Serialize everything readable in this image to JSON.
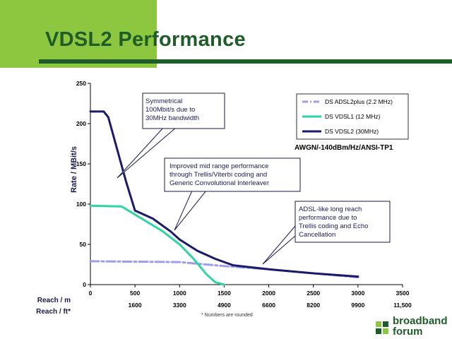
{
  "slide": {
    "title": "VDSL2 Performance",
    "footnote": "* Numbers are rounded",
    "logo_line1": "broadband",
    "logo_line2": "forum"
  },
  "colors": {
    "accent_green": "#8dc63f",
    "title_green": "#1f5c2a",
    "adsl2plus": "#9e9ee6",
    "vdsl1": "#2ed3a6",
    "vdsl2": "#1a1a6b"
  },
  "chart_data": {
    "type": "line",
    "ylabel": "Rate / MBit/s",
    "xlabel_m": "Reach / m",
    "xlabel_ft": "Reach / ft*",
    "xlim": [
      0,
      3500
    ],
    "ylim": [
      0,
      250
    ],
    "x_ticks": [
      "0",
      "500",
      "1000",
      "1500",
      "2000",
      "2500",
      "3000",
      "3500"
    ],
    "x_ticks_ft": [
      "1600",
      "3300",
      "4900",
      "6600",
      "8200",
      "9900",
      "11,500"
    ],
    "y_ticks": [
      "0",
      "50",
      "100",
      "150",
      "200",
      "250"
    ],
    "grid": false,
    "legend_position": "top-right",
    "legend_note": "AWGN/-140dBm/Hz/ANSI-TP1",
    "series": [
      {
        "name": "DS ADSL2plus (2.2 MHz)",
        "style": "dash-dot",
        "x": [
          0,
          500,
          1000,
          1500,
          2000,
          2500,
          3000
        ],
        "y": [
          29,
          28.5,
          28,
          23,
          19,
          14,
          9
        ]
      },
      {
        "name": "DS VDSL1 (12 MHz)",
        "style": "solid",
        "x": [
          0,
          350,
          500,
          800,
          1000,
          1150,
          1300,
          1400,
          1500
        ],
        "y": [
          98,
          97,
          87,
          67,
          50,
          33,
          13,
          3,
          0
        ]
      },
      {
        "name": "DS VDSL2 (30MHz)",
        "style": "solid",
        "x": [
          0,
          150,
          200,
          300,
          400,
          500,
          700,
          900,
          1000,
          1200,
          1400,
          1600,
          2000,
          2500,
          3000
        ],
        "y": [
          215,
          215,
          208,
          168,
          128,
          92,
          82,
          66,
          56,
          42,
          32,
          24,
          19,
          14,
          10
        ]
      }
    ],
    "annotations": [
      {
        "id": "symmetrical",
        "lines": [
          "Symmetrical",
          "100Mbit/s due to",
          "30MHz bandwidth"
        ]
      },
      {
        "id": "midrange",
        "lines": [
          "Improved mid range performance",
          "through Trellis/Viterbi coding and",
          "Generic Convolutional Interleaver"
        ]
      },
      {
        "id": "longreach",
        "lines": [
          "ADSL-like long reach",
          "performance due to",
          "Trellis coding and Echo",
          "Cancellation"
        ]
      }
    ]
  }
}
